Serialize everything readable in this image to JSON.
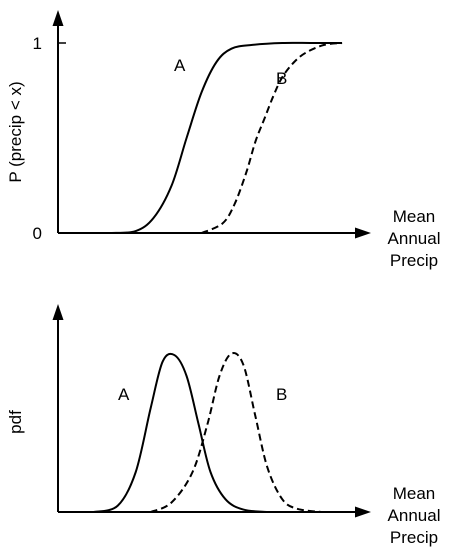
{
  "chart_data": [
    {
      "type": "line",
      "title": "",
      "ylabel": "P (precip < x)",
      "xlabel_lines": [
        "Mean",
        "Annual",
        "Precip"
      ],
      "y_ticks": [
        {
          "value": 0,
          "label": "0"
        },
        {
          "value": 1,
          "label": "1"
        }
      ],
      "xlim": [
        0,
        1
      ],
      "ylim": [
        0,
        1
      ],
      "grid": false,
      "series": [
        {
          "name": "A",
          "style": "solid",
          "x": [
            0.18,
            0.26,
            0.32,
            0.38,
            0.43,
            0.48,
            0.53,
            0.58,
            0.65,
            0.75,
            0.85,
            0.95
          ],
          "y": [
            0.0,
            0.01,
            0.08,
            0.25,
            0.5,
            0.74,
            0.9,
            0.97,
            0.99,
            1.0,
            1.0,
            1.0
          ]
        },
        {
          "name": "B",
          "style": "dashed",
          "x": [
            0.48,
            0.55,
            0.59,
            0.63,
            0.66,
            0.69,
            0.72,
            0.75,
            0.79,
            0.83,
            0.89,
            0.95
          ],
          "y": [
            0.0,
            0.05,
            0.15,
            0.32,
            0.48,
            0.6,
            0.72,
            0.82,
            0.9,
            0.95,
            0.99,
            1.0
          ]
        }
      ]
    },
    {
      "type": "line",
      "title": "",
      "ylabel": "pdf",
      "xlabel_lines": [
        "Mean",
        "Annual",
        "Precip"
      ],
      "xlim": [
        0,
        1
      ],
      "ylim": [
        0,
        1
      ],
      "grid": false,
      "series": [
        {
          "name": "A",
          "style": "solid",
          "x": [
            0.12,
            0.2,
            0.26,
            0.31,
            0.35,
            0.39,
            0.43,
            0.47,
            0.51,
            0.56,
            0.62,
            0.7
          ],
          "y": [
            0.0,
            0.04,
            0.25,
            0.65,
            0.94,
            0.98,
            0.85,
            0.55,
            0.25,
            0.08,
            0.015,
            0.0
          ]
        },
        {
          "name": "B",
          "style": "dashed",
          "x": [
            0.31,
            0.38,
            0.45,
            0.5,
            0.54,
            0.58,
            0.62,
            0.66,
            0.7,
            0.75,
            0.8,
            0.88
          ],
          "y": [
            0.0,
            0.06,
            0.25,
            0.55,
            0.85,
            0.99,
            0.92,
            0.6,
            0.28,
            0.08,
            0.02,
            0.0
          ]
        }
      ]
    }
  ]
}
